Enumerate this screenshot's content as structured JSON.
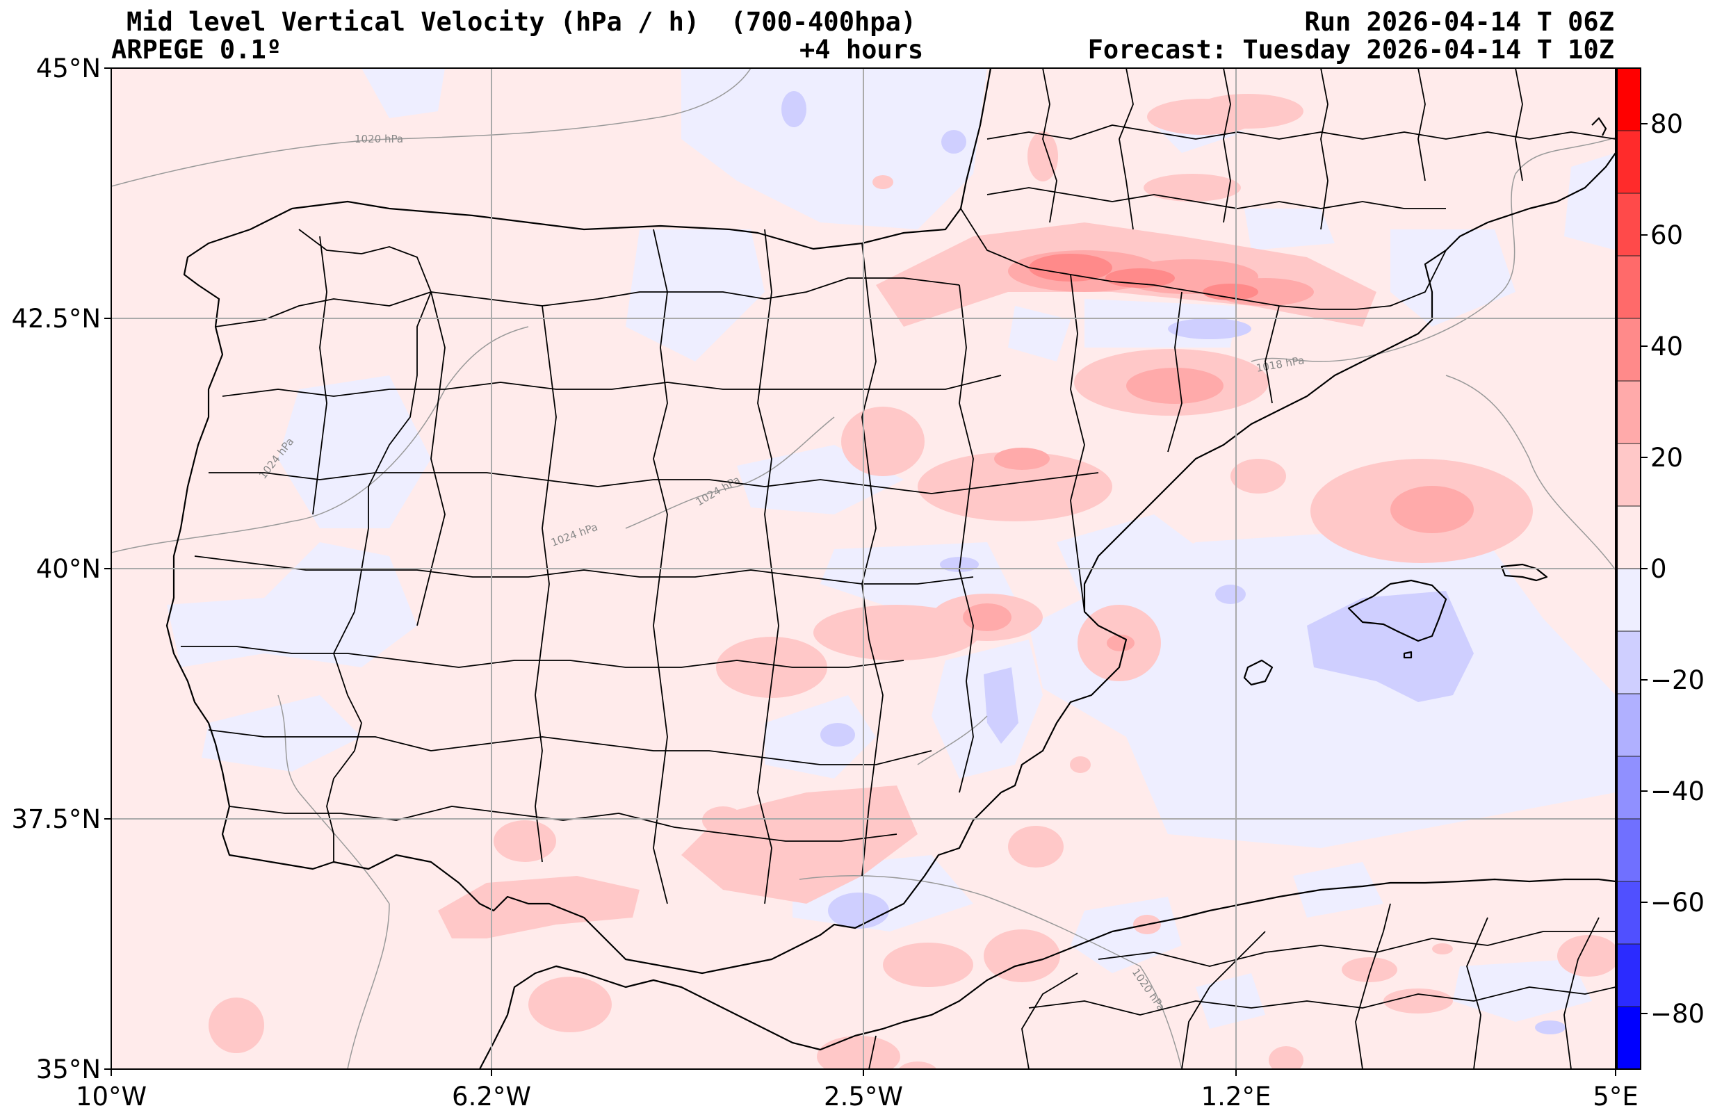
{
  "header": {
    "title": "Mid level Vertical Velocity (hPa / h)  (700-400hpa)",
    "model": "ARPEGE 0.1º",
    "lead": "+4 hours",
    "run": "Run 2026-04-14 T 06Z",
    "forecast": "Forecast: Tuesday 2026-04-14 T 10Z"
  },
  "axes": {
    "lat_labels": [
      "45°N",
      "42.5°N",
      "40°N",
      "37.5°N",
      "35°N"
    ],
    "lon_labels": [
      "10°W",
      "6.2°W",
      "2.5°W",
      "1.2°E",
      "5°E"
    ]
  },
  "isobars": [
    "1020 hPa",
    "1024 hPa",
    "1024 hPa",
    "1024 hPa",
    "1018 hPa",
    "1020 hPa"
  ],
  "colorbar": {
    "ticks": [
      "80",
      "60",
      "40",
      "20",
      "0",
      "−20",
      "−40",
      "−60",
      "−80"
    ],
    "levels": [
      "#ff0000",
      "#ff2b2b",
      "#ff4a4a",
      "#ff6a6a",
      "#ff8a8a",
      "#ffaaaa",
      "#ffc8c8",
      "#ffeaea",
      "#eeeeff",
      "#cfcfff",
      "#b0b0ff",
      "#9090ff",
      "#7070ff",
      "#5050ff",
      "#2b2bff",
      "#0000ff"
    ]
  }
}
